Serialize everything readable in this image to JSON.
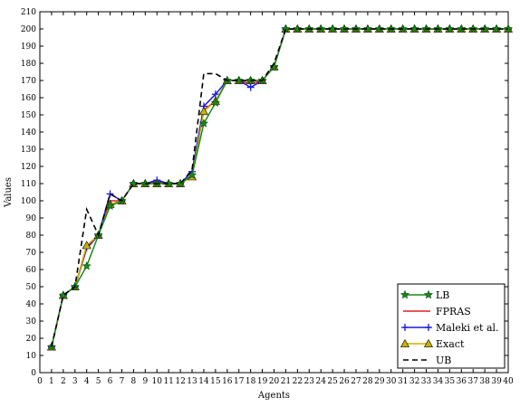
{
  "chart_data": {
    "type": "line",
    "title": "",
    "xlabel": "Agents",
    "ylabel": "Values",
    "xlim": [
      0,
      40
    ],
    "ylim": [
      0,
      210
    ],
    "xticks": [
      0,
      1,
      2,
      3,
      4,
      5,
      6,
      7,
      8,
      9,
      10,
      11,
      12,
      13,
      14,
      15,
      16,
      17,
      18,
      19,
      20,
      21,
      22,
      23,
      24,
      25,
      26,
      27,
      28,
      29,
      30,
      31,
      32,
      33,
      34,
      35,
      36,
      37,
      38,
      39,
      40
    ],
    "yticks": [
      0,
      10,
      20,
      30,
      40,
      50,
      60,
      70,
      80,
      90,
      100,
      110,
      120,
      130,
      140,
      150,
      160,
      170,
      180,
      190,
      200,
      210
    ],
    "grid": false,
    "legend_position": "bottom-right",
    "x": [
      1,
      2,
      3,
      4,
      5,
      6,
      7,
      8,
      9,
      10,
      11,
      12,
      13,
      14,
      15,
      16,
      17,
      18,
      19,
      20,
      21,
      22,
      23,
      24,
      25,
      26,
      27,
      28,
      29,
      30,
      31,
      32,
      33,
      34,
      35,
      36,
      37,
      38,
      39,
      40
    ],
    "series": [
      {
        "name": "LB",
        "color": "#1a8a1a",
        "marker": "star",
        "dash": "",
        "values": [
          15,
          45,
          50,
          62,
          80,
          97,
          100,
          110,
          110,
          110,
          110,
          110,
          115,
          145,
          157,
          170,
          170,
          170,
          170,
          178,
          200,
          200,
          200,
          200,
          200,
          200,
          200,
          200,
          200,
          200,
          200,
          200,
          200,
          200,
          200,
          200,
          200,
          200,
          200,
          200
        ]
      },
      {
        "name": "FPRAS",
        "color": "#e02020",
        "marker": "none",
        "dash": "",
        "values": [
          15,
          45,
          50,
          72,
          80,
          100,
          100,
          110,
          110,
          111,
          110,
          110,
          115,
          153,
          158,
          170,
          170,
          168,
          170,
          178,
          200,
          200,
          200,
          200,
          200,
          200,
          200,
          200,
          200,
          200,
          200,
          200,
          200,
          200,
          200,
          200,
          200,
          200,
          200,
          200
        ]
      },
      {
        "name": "Maleki et al.",
        "color": "#1a1ae0",
        "marker": "plus",
        "dash": "",
        "values": [
          15,
          45,
          50,
          73,
          80,
          104,
          100,
          110,
          110,
          112,
          110,
          110,
          117,
          155,
          162,
          170,
          170,
          166,
          170,
          178,
          200,
          200,
          200,
          200,
          200,
          200,
          200,
          200,
          200,
          200,
          200,
          200,
          200,
          200,
          200,
          200,
          200,
          200,
          200,
          200
        ]
      },
      {
        "name": "Exact",
        "color": "#c8b400",
        "marker": "triangle",
        "dash": "",
        "values": [
          15,
          45,
          50,
          74,
          80,
          98,
          100,
          110,
          110,
          110,
          110,
          110,
          114,
          152,
          158,
          170,
          170,
          170,
          170,
          178,
          200,
          200,
          200,
          200,
          200,
          200,
          200,
          200,
          200,
          200,
          200,
          200,
          200,
          200,
          200,
          200,
          200,
          200,
          200,
          200
        ]
      },
      {
        "name": "UB",
        "color": "#000000",
        "marker": "none",
        "dash": "6,4",
        "values": [
          15,
          45,
          50,
          95,
          80,
          104,
          100,
          110,
          110,
          110,
          110,
          110,
          118,
          174,
          174,
          170,
          170,
          170,
          170,
          180,
          200,
          200,
          200,
          200,
          200,
          200,
          200,
          200,
          200,
          200,
          200,
          200,
          200,
          200,
          200,
          200,
          200,
          200,
          200,
          200
        ]
      }
    ]
  }
}
